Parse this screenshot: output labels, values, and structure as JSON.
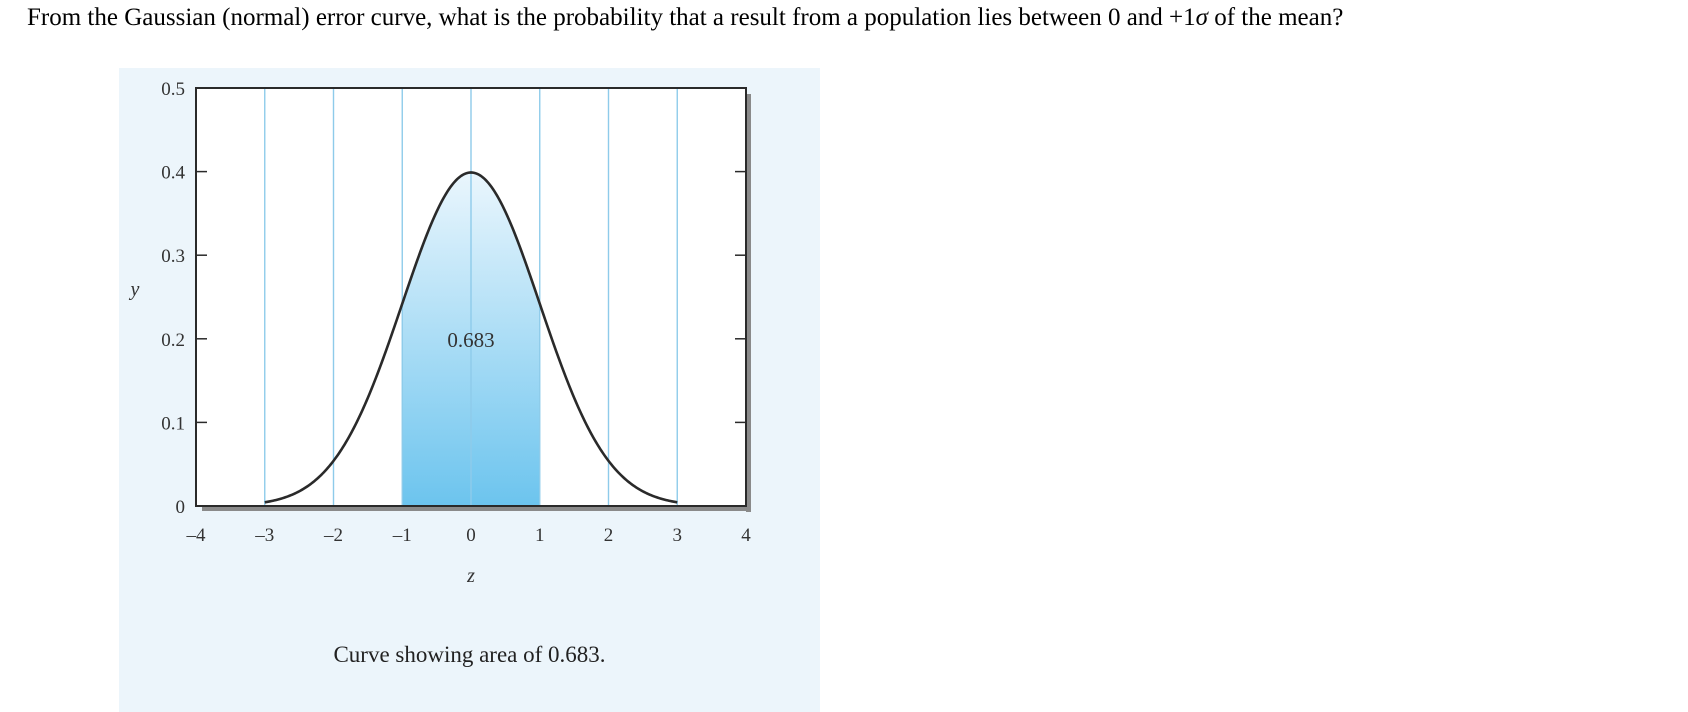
{
  "question": {
    "prefix": "From the Gaussian (normal) error curve, what is the probability that a result from a population lies between 0 and +1",
    "symbol": "σ",
    "suffix": " of the mean?"
  },
  "colors": {
    "panel_background": "#ecf5fb",
    "gridline": "#8ecbea",
    "shade_top": "#eaf6fd",
    "shade_bottom": "#6cc4ee",
    "curve": "#2a2a2a",
    "frame": "#2a2a2a",
    "shadow": "#8a8a8a"
  },
  "chart_data": {
    "type": "area",
    "function": "standard normal density",
    "x": [
      -3.0,
      -2.5,
      -2.0,
      -1.5,
      -1.0,
      -0.5,
      0.0,
      0.5,
      1.0,
      1.5,
      2.0,
      2.5,
      3.0
    ],
    "y": [
      0.0044,
      0.0175,
      0.054,
      0.1295,
      0.242,
      0.3521,
      0.3989,
      0.3521,
      0.242,
      0.1295,
      0.054,
      0.0175,
      0.0044
    ],
    "shaded_region": {
      "from": -1,
      "to": 1,
      "label": "0.683"
    },
    "xlabel": "z",
    "ylabel": "y",
    "xlim": [
      -4,
      4
    ],
    "ylim": [
      0,
      0.5
    ],
    "x_ticks": [
      -4,
      -3,
      -2,
      -1,
      0,
      1,
      2,
      3,
      4
    ],
    "x_tick_labels": [
      "–4",
      "–3",
      "–2",
      "–1",
      "0",
      "1",
      "2",
      "3",
      "4"
    ],
    "y_ticks": [
      0,
      0.1,
      0.2,
      0.3,
      0.4,
      0.5
    ],
    "y_tick_labels": [
      "0",
      "0.1",
      "0.2",
      "0.3",
      "0.4",
      "0.5"
    ],
    "vertical_gridlines_at": [
      -3,
      -2,
      -1,
      0,
      1,
      2,
      3
    ],
    "grid": "vertical",
    "caption": "Curve showing area of 0.683."
  }
}
